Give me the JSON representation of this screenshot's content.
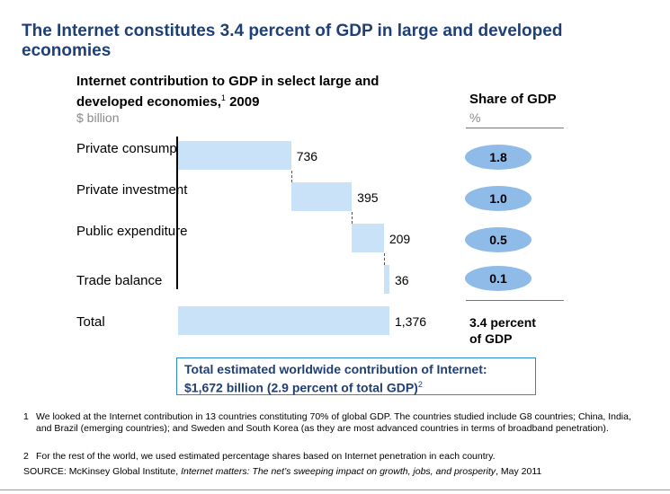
{
  "title": "The Internet constitutes 3.4 percent of GDP in large and developed economies",
  "chart_data": {
    "type": "bar",
    "subtype": "waterfall",
    "title": "Internet contribution to GDP in select large and developed economies,",
    "title_footnote": "1",
    "title_year": "2009",
    "unit": "$ billion",
    "categories": [
      "Private consumption",
      "Private investment",
      "Public expenditure",
      "Trade balance",
      "Total"
    ],
    "values": [
      736,
      395,
      209,
      36,
      1376
    ],
    "value_labels": [
      "736",
      "395",
      "209",
      "36",
      "1,376"
    ],
    "share": {
      "header": "Share of GDP",
      "unit": "%",
      "values": [
        "1.8",
        "1.0",
        "0.5",
        "0.1"
      ],
      "total_line1": "3.4 percent",
      "total_line2": "of GDP"
    }
  },
  "worldwide": {
    "line1": "Total estimated worldwide contribution of Internet:",
    "line2": "$1,672 billion (2.9 percent of total GDP)",
    "footnote": "2"
  },
  "footnotes": [
    {
      "num": "1",
      "text": "We looked at the Internet contribution in 13 countries constituting 70% of global GDP.  The countries studied include G8 countries; China, India, and Brazil (emerging countries); and Sweden and South Korea (as they are most advanced countries in terms of broadband penetration)."
    },
    {
      "num": "2",
      "text": "For the rest of the world, we used estimated percentage shares based on Internet penetration in each country."
    }
  ],
  "source": {
    "prefix": "SOURCE: McKinsey Global Institute, ",
    "publication": "Internet matters: The net’s sweeping impact on growth, jobs, and prosperity",
    "suffix": ", May 2011"
  }
}
